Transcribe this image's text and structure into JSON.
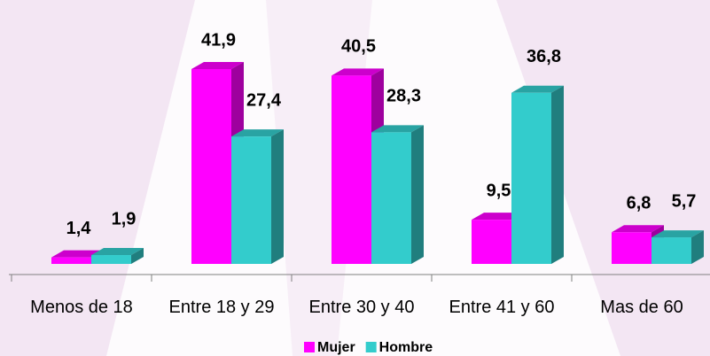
{
  "chart_data": {
    "type": "bar",
    "categories": [
      "Menos de 18",
      "Entre 18 y 29",
      "Entre 30 y 40",
      "Entre 41 y 60",
      "Mas de 60"
    ],
    "series": [
      {
        "name": "Mujer",
        "color": "#ff00ff",
        "values": [
          1.4,
          41.9,
          40.5,
          9.5,
          6.8
        ],
        "value_labels": [
          "1,4",
          "41,9",
          "40,5",
          "9,5",
          "6,8"
        ]
      },
      {
        "name": "Hombre",
        "color": "#33cccc",
        "values": [
          1.9,
          27.4,
          28.3,
          36.8,
          5.7
        ],
        "value_labels": [
          "1,9",
          "27,4",
          "28,3",
          "36,8",
          "5,7"
        ]
      }
    ],
    "legend": "bottom"
  }
}
